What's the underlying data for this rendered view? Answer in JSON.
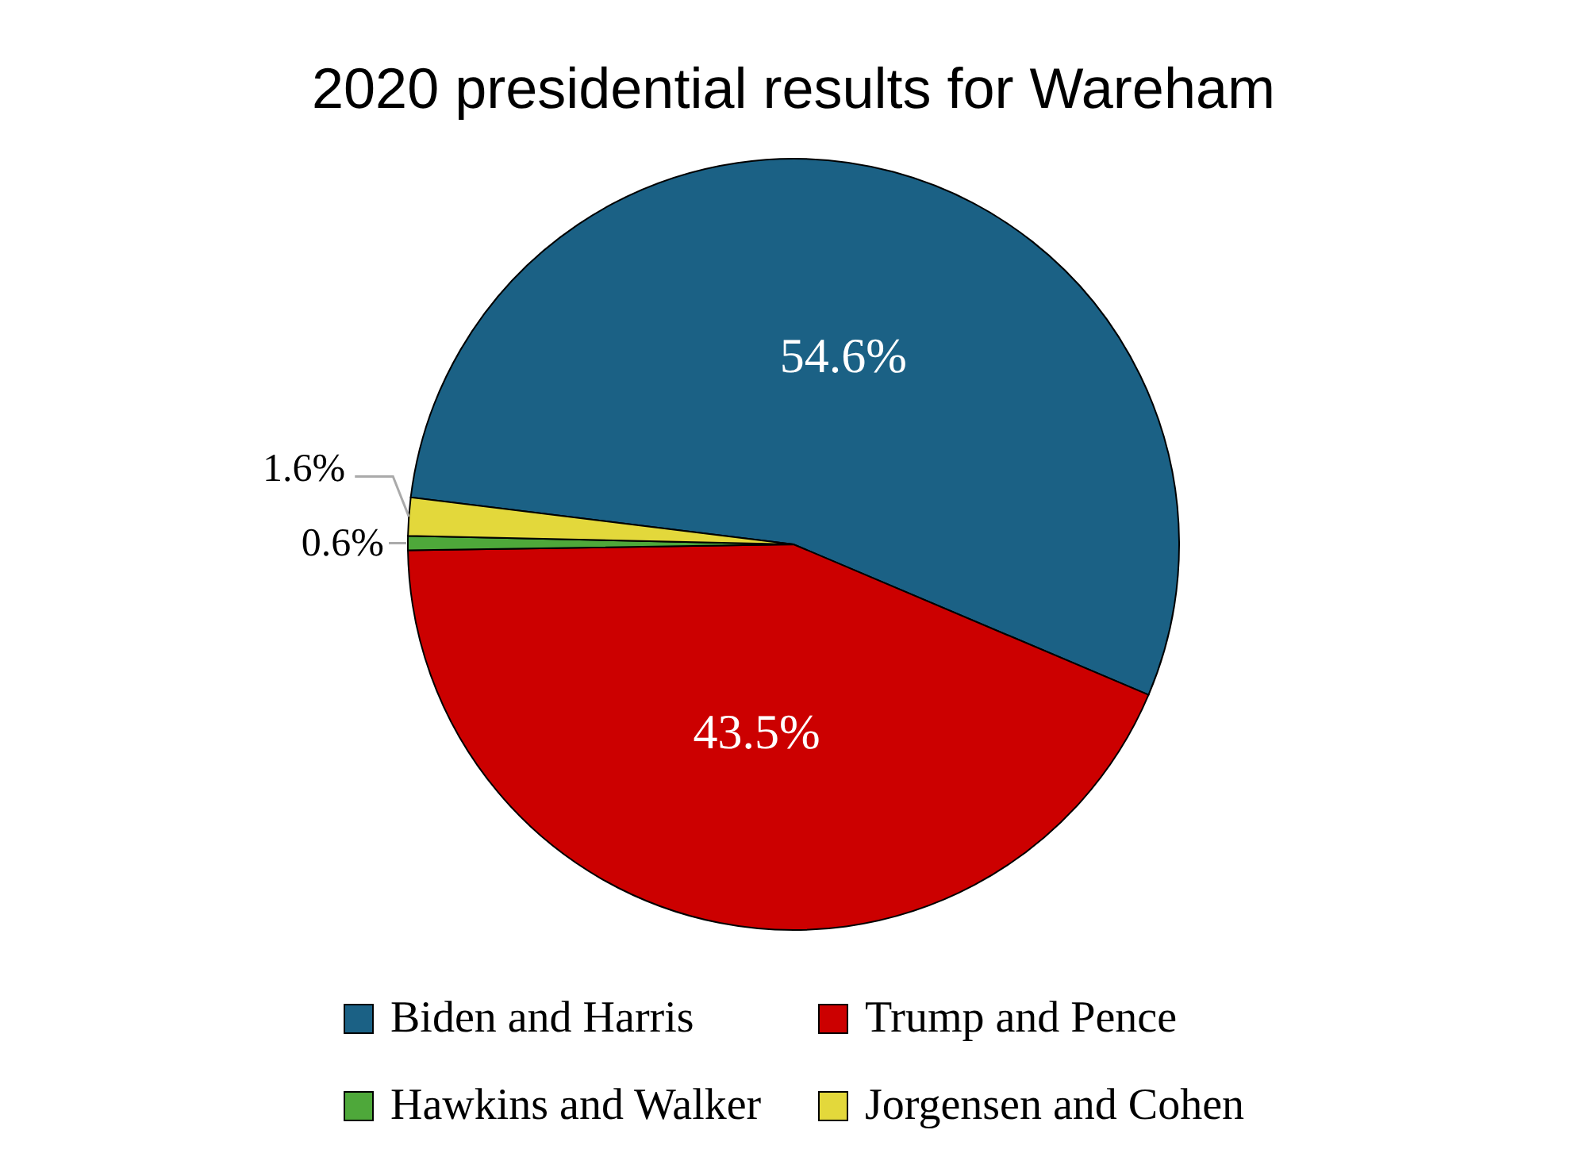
{
  "chart_data": {
    "type": "pie",
    "title": "2020 presidential results for Wareham",
    "categories": [
      "Biden and Harris",
      "Trump and Pence",
      "Hawkins and Walker",
      "Jorgensen and Cohen"
    ],
    "values": [
      54.6,
      43.5,
      0.6,
      1.6
    ],
    "colors": [
      "#1b6185",
      "#cc0000",
      "#4ea83a",
      "#e3d83b"
    ],
    "value_labels": [
      "54.6%",
      "43.5%",
      "0.6%",
      "1.6%"
    ],
    "legend": "bottom"
  }
}
